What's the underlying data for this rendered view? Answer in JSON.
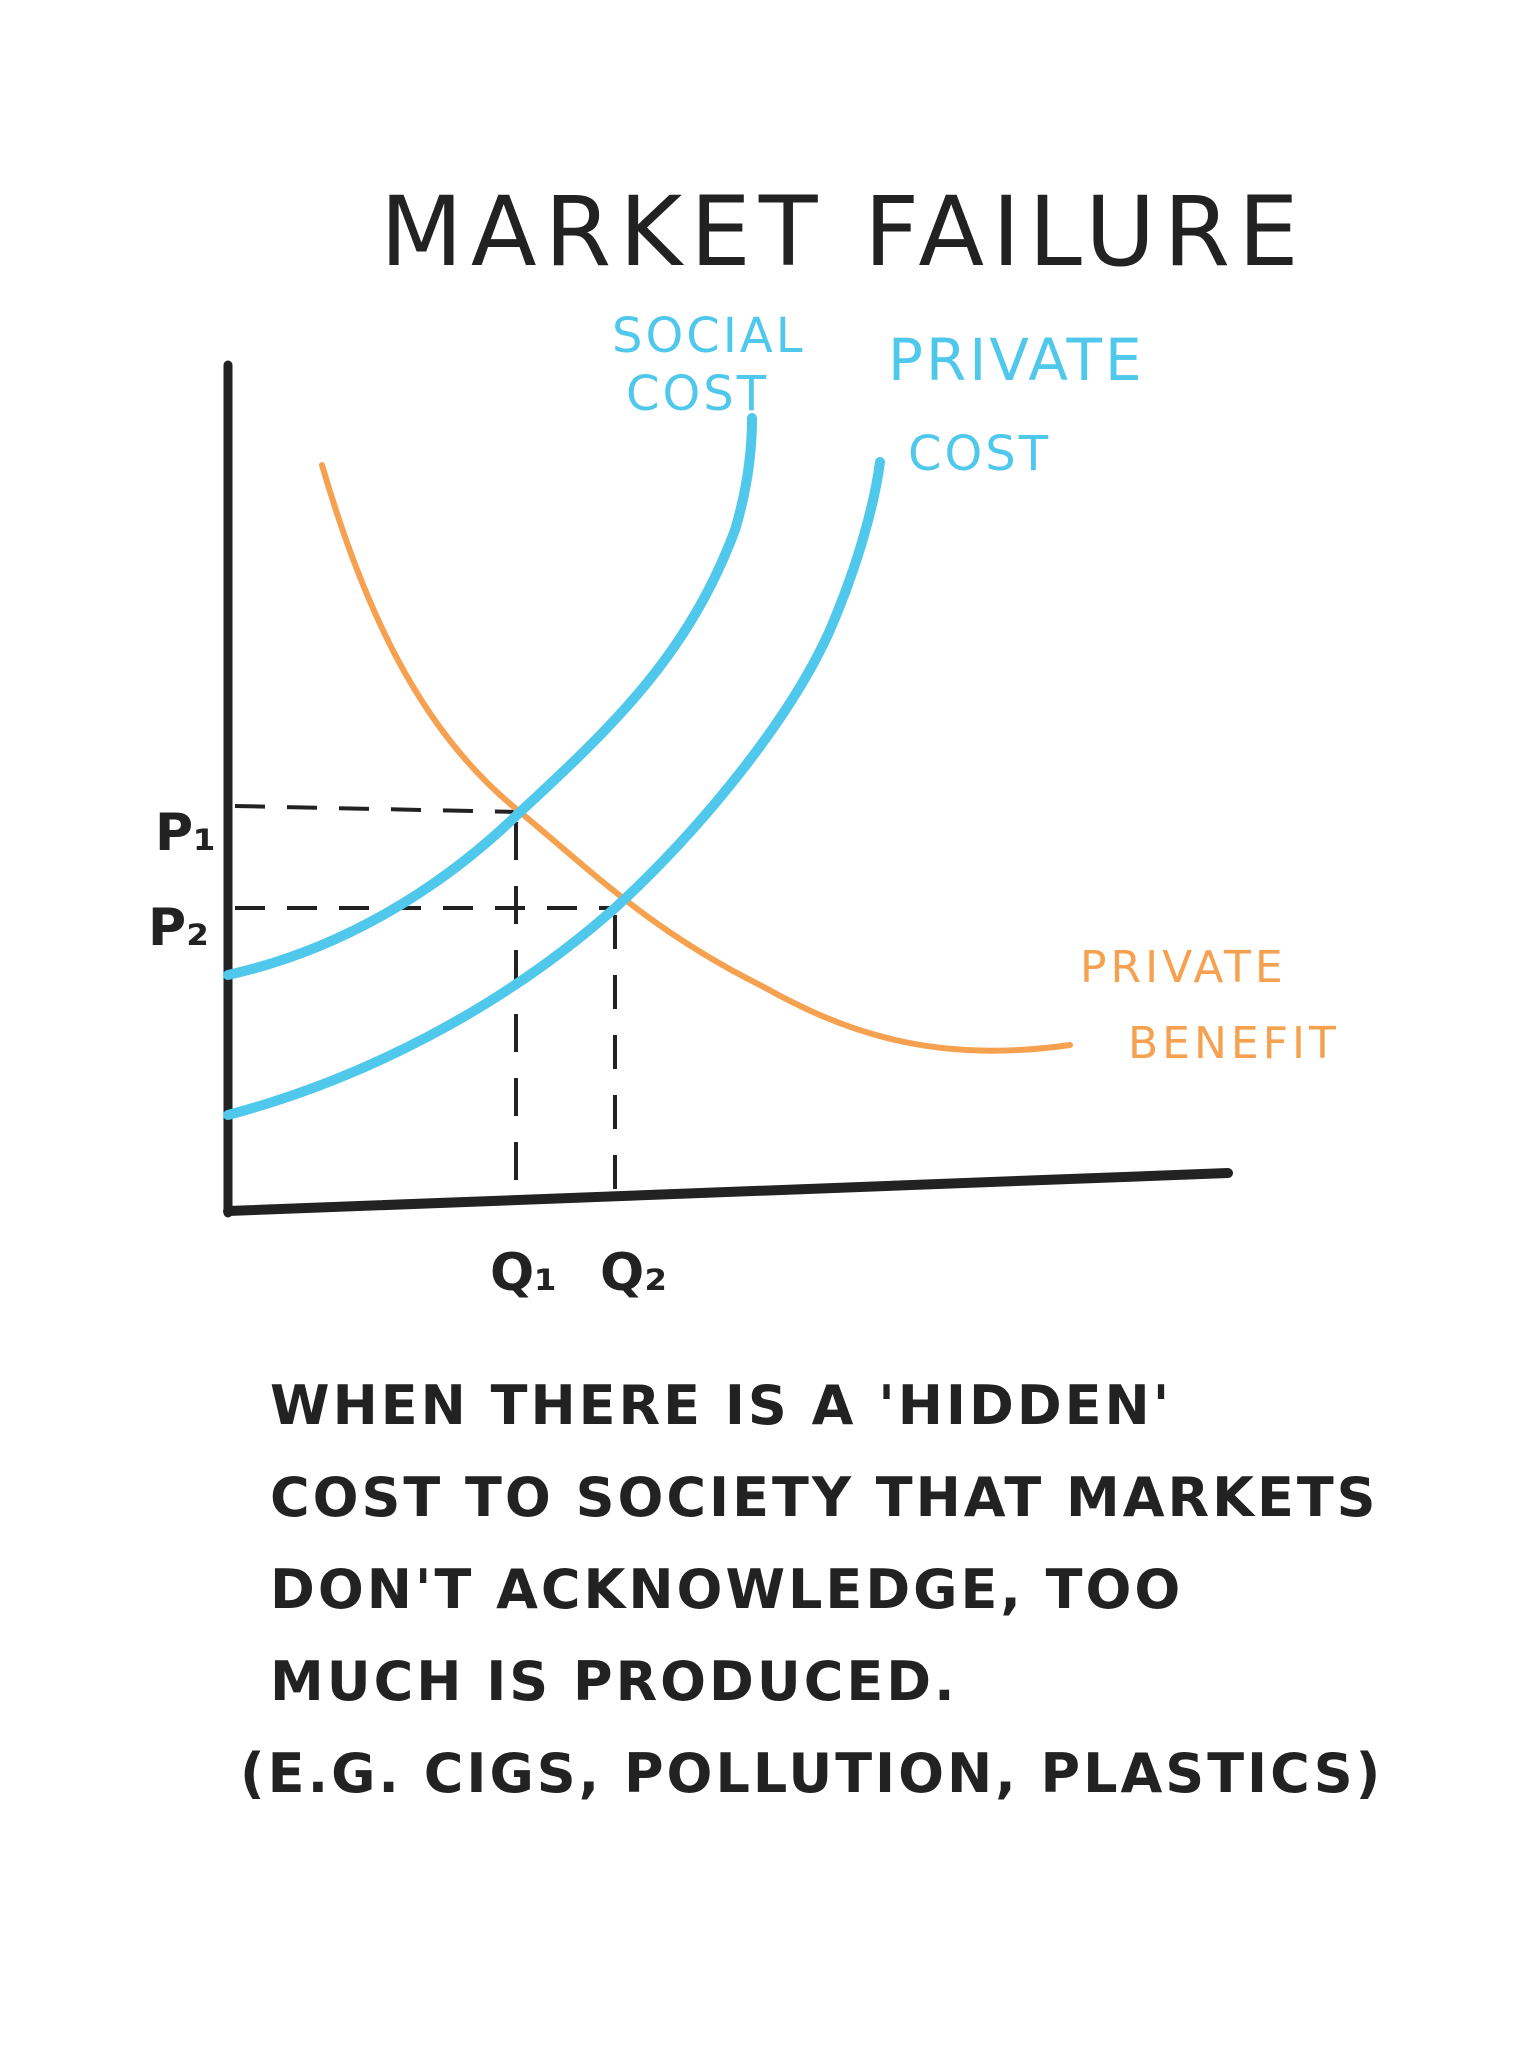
{
  "title": "MARKET FAILURE",
  "labels": {
    "social_cost_line1": "SOCIAL",
    "social_cost_line2": "COST",
    "private_cost_line1": "PRIVATE",
    "private_cost_line2": "COST",
    "private_benefit_line1": "PRIVATE",
    "private_benefit_line2": "BENEFIT",
    "p1": "P₁",
    "p2": "P₂",
    "q1": "Q₁",
    "q2": "Q₂"
  },
  "note_lines": [
    "WHEN THERE IS A 'HIDDEN'",
    "COST TO SOCIETY THAT MARKETS",
    "DON'T ACKNOWLEDGE, TOO",
    "MUCH IS PRODUCED.",
    "(E.G. CIGS, POLLUTION, PLASTICS)"
  ],
  "colors": {
    "cost_curves": "#4fc8ec",
    "benefit_curve": "#f6a150",
    "ink": "#222222"
  }
}
